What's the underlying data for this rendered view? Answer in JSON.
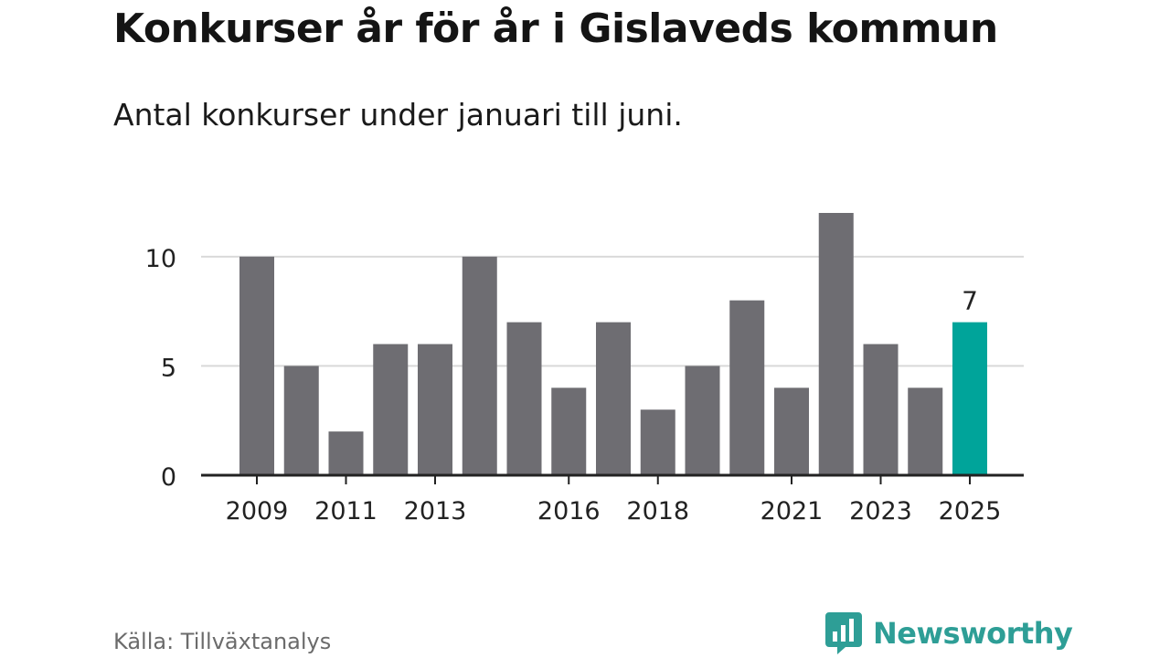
{
  "title": "Konkurser år för år i Gislaveds kommun",
  "subtitle": "Antal konkurser under januari till juni.",
  "source": "Källa: Tillväxtanalys",
  "brand": {
    "name": "Newsworthy",
    "icon": "newsworthy-logo-icon"
  },
  "colors": {
    "bar": "#6e6d72",
    "highlight": "#00a49a",
    "grid": "#d9d9d9",
    "axis": "#222222",
    "brand": "#2e9e96"
  },
  "chart_data": {
    "type": "bar",
    "categories": [
      "2009",
      "2010",
      "2011",
      "2012",
      "2013",
      "2014",
      "2015",
      "2016",
      "2017",
      "2018",
      "2019",
      "2020",
      "2021",
      "2022",
      "2023",
      "2024",
      "2025"
    ],
    "values": [
      10,
      5,
      2,
      6,
      6,
      10,
      7,
      4,
      7,
      3,
      5,
      8,
      4,
      12,
      6,
      4,
      7
    ],
    "x_tick_labels": [
      "2009",
      "2011",
      "2013",
      "2016",
      "2018",
      "2021",
      "2023",
      "2025"
    ],
    "y_ticks": [
      0,
      5,
      10
    ],
    "ylim": [
      0,
      12
    ],
    "highlight_category": "2025",
    "data_labels": [
      {
        "category": "2025",
        "value": 7
      }
    ],
    "xlabel": "",
    "ylabel": "",
    "grid": true,
    "legend": "none"
  }
}
